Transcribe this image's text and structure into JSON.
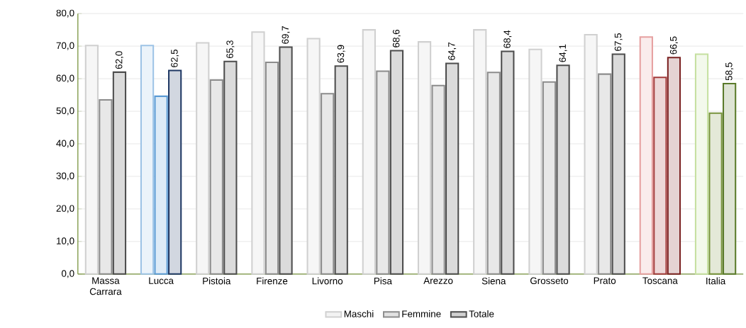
{
  "chart_data": {
    "type": "bar",
    "categories": [
      "Massa Carrara",
      "Lucca",
      "Pistoia",
      "Firenze",
      "Livorno",
      "Pisa",
      "Arezzo",
      "Siena",
      "Grosseto",
      "Prato",
      "Toscana",
      "Italia"
    ],
    "series": [
      {
        "name": "Maschi",
        "color": "#d0d0d0",
        "colors": [
          "#d0d0d0",
          "#9dc3e6",
          "#d0d0d0",
          "#d0d0d0",
          "#d0d0d0",
          "#d0d0d0",
          "#d0d0d0",
          "#d0d0d0",
          "#d0d0d0",
          "#d0d0d0",
          "#e6a0a0",
          "#c5e0a0"
        ],
        "values": [
          70.2,
          70.2,
          71.0,
          74.3,
          72.3,
          75.0,
          71.3,
          75.0,
          69.0,
          73.5,
          72.8,
          67.5
        ]
      },
      {
        "name": "Femmine",
        "color": "#8c8c8c",
        "colors": [
          "#8c8c8c",
          "#5b9bd5",
          "#8c8c8c",
          "#8c8c8c",
          "#8c8c8c",
          "#8c8c8c",
          "#8c8c8c",
          "#8c8c8c",
          "#8c8c8c",
          "#8c8c8c",
          "#a33a3a",
          "#77933c"
        ],
        "values": [
          53.5,
          54.6,
          59.6,
          65.0,
          55.4,
          62.3,
          57.9,
          61.9,
          59.0,
          61.4,
          60.4,
          49.4
        ]
      },
      {
        "name": "Totale",
        "color": "#4d4d4d",
        "colors": [
          "#4d4d4d",
          "#1f3864",
          "#4d4d4d",
          "#4d4d4d",
          "#4d4d4d",
          "#4d4d4d",
          "#4d4d4d",
          "#4d4d4d",
          "#4d4d4d",
          "#4d4d4d",
          "#7b2222",
          "#5a7a2a"
        ],
        "values": [
          62.0,
          62.5,
          65.3,
          69.7,
          63.9,
          68.6,
          64.7,
          68.4,
          64.1,
          67.5,
          66.5,
          58.5
        ],
        "value_labels": [
          "62,0",
          "62,5",
          "65,3",
          "69,7",
          "63,9",
          "68,6",
          "64,7",
          "68,4",
          "64,1",
          "67,5",
          "66,5",
          "58,5"
        ]
      }
    ],
    "ylim": [
      0,
      80
    ],
    "yticks": [
      {
        "value": 0,
        "label": "0,0"
      },
      {
        "value": 10,
        "label": "10,0"
      },
      {
        "value": 20,
        "label": "20,0"
      },
      {
        "value": 30,
        "label": "30,0"
      },
      {
        "value": 40,
        "label": "40,0"
      },
      {
        "value": 50,
        "label": "50,0"
      },
      {
        "value": 60,
        "label": "60,0"
      },
      {
        "value": 70,
        "label": "70,0"
      },
      {
        "value": 80,
        "label": "80,0"
      }
    ],
    "grid": "y",
    "legend": "bottom"
  }
}
